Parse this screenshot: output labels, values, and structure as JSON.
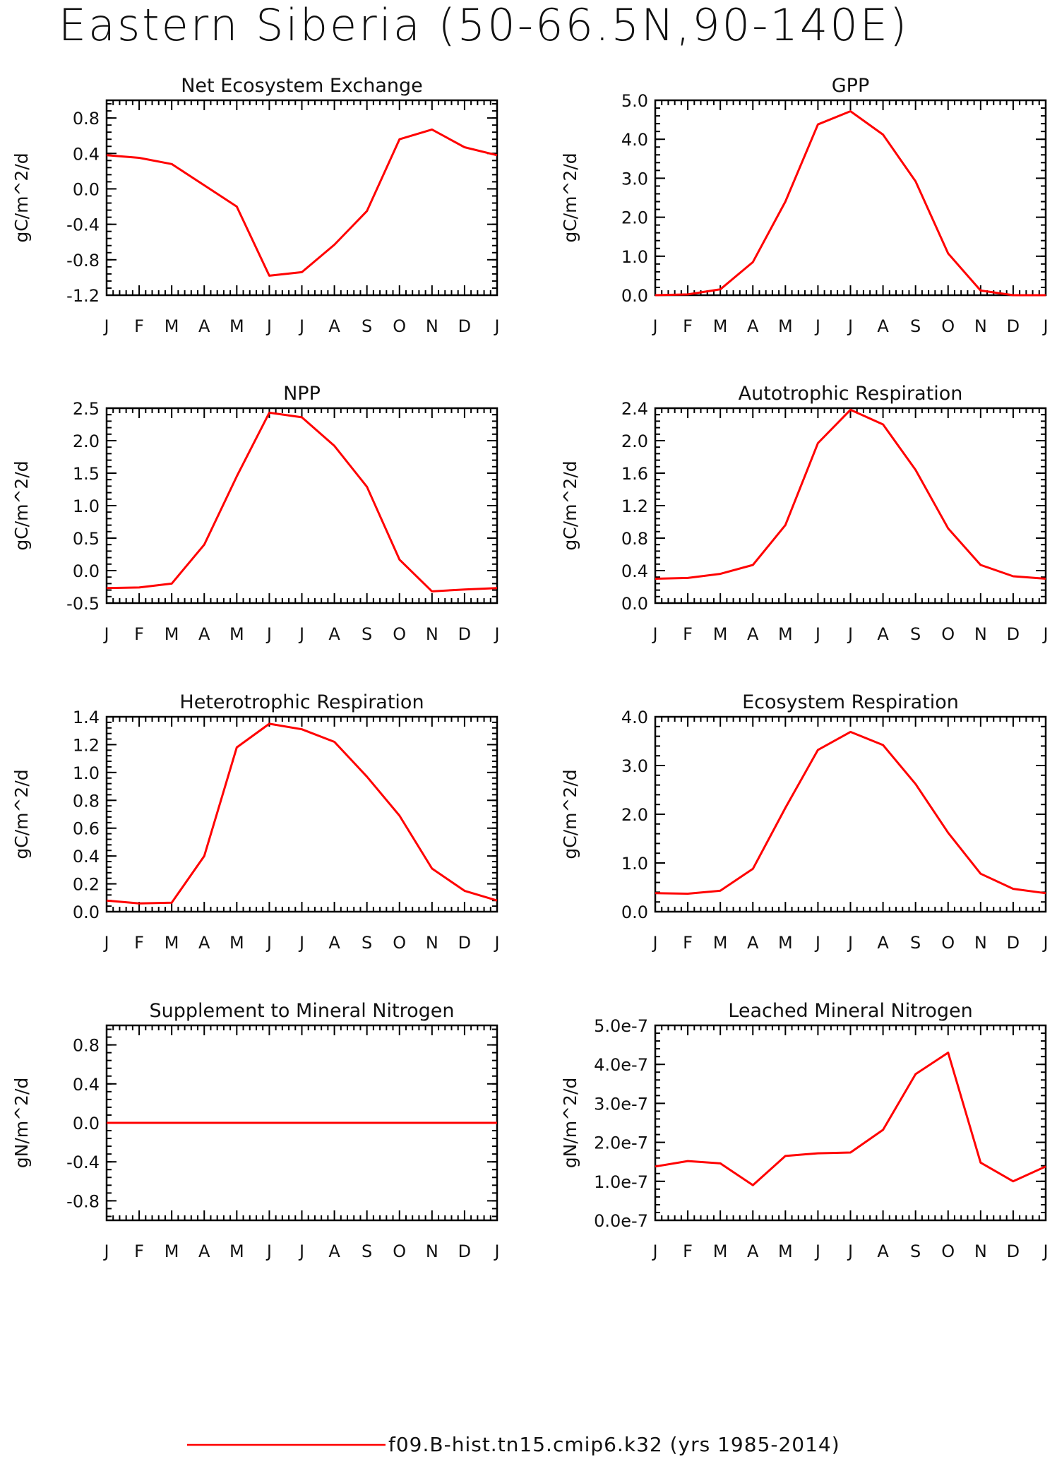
{
  "title": "Eastern Siberia (50-66.5N,90-140E)",
  "legend": {
    "label": "f09.B-hist.tn15.cmip6.k32 (yrs 1985-2014)",
    "color": "#ff0000"
  },
  "chart_data": [
    {
      "type": "line",
      "title": "Net Ecosystem Exchange",
      "ylabel": "gC/m^2/d",
      "categories": [
        "J",
        "F",
        "M",
        "A",
        "M",
        "J",
        "J",
        "A",
        "S",
        "O",
        "N",
        "D",
        "J"
      ],
      "ylim": [
        -1.2,
        1.0
      ],
      "yticks": [
        -1.2,
        -0.8,
        -0.4,
        0.0,
        0.4,
        0.8
      ],
      "ytick_labels": [
        "-1.2",
        "-0.8",
        "-0.4",
        "0.0",
        "0.4",
        "0.8"
      ],
      "series": [
        {
          "values": [
            0.38,
            0.35,
            0.28,
            0.04,
            -0.2,
            -0.98,
            -0.94,
            -0.63,
            -0.25,
            0.56,
            0.67,
            0.47,
            0.38
          ]
        }
      ]
    },
    {
      "type": "line",
      "title": "GPP",
      "ylabel": "gC/m^2/d",
      "categories": [
        "J",
        "F",
        "M",
        "A",
        "M",
        "J",
        "J",
        "A",
        "S",
        "O",
        "N",
        "D",
        "J"
      ],
      "ylim": [
        0.0,
        5.0
      ],
      "yticks": [
        0.0,
        1.0,
        2.0,
        3.0,
        4.0,
        5.0
      ],
      "ytick_labels": [
        "0.0",
        "1.0",
        "2.0",
        "3.0",
        "4.0",
        "5.0"
      ],
      "series": [
        {
          "values": [
            0.0,
            0.02,
            0.15,
            0.85,
            2.4,
            4.38,
            4.72,
            4.12,
            2.92,
            1.07,
            0.12,
            0.0,
            0.0
          ]
        }
      ]
    },
    {
      "type": "line",
      "title": "NPP",
      "ylabel": "gC/m^2/d",
      "categories": [
        "J",
        "F",
        "M",
        "A",
        "M",
        "J",
        "J",
        "A",
        "S",
        "O",
        "N",
        "D",
        "J"
      ],
      "ylim": [
        -0.5,
        2.5
      ],
      "yticks": [
        -0.5,
        0.0,
        0.5,
        1.0,
        1.5,
        2.0,
        2.5
      ],
      "ytick_labels": [
        "-0.5",
        "0.0",
        "0.5",
        "1.0",
        "1.5",
        "2.0",
        "2.5"
      ],
      "series": [
        {
          "values": [
            -0.27,
            -0.26,
            -0.2,
            0.4,
            1.45,
            2.43,
            2.36,
            1.92,
            1.29,
            0.17,
            -0.32,
            -0.29,
            -0.27
          ]
        }
      ]
    },
    {
      "type": "line",
      "title": "Autotrophic Respiration",
      "ylabel": "gC/m^2/d",
      "categories": [
        "J",
        "F",
        "M",
        "A",
        "M",
        "J",
        "J",
        "A",
        "S",
        "O",
        "N",
        "D",
        "J"
      ],
      "ylim": [
        0.0,
        2.4
      ],
      "yticks": [
        0.0,
        0.4,
        0.8,
        1.2,
        1.6,
        2.0,
        2.4
      ],
      "ytick_labels": [
        "0.0",
        "0.4",
        "0.8",
        "1.2",
        "1.6",
        "2.0",
        "2.4"
      ],
      "series": [
        {
          "values": [
            0.3,
            0.31,
            0.36,
            0.47,
            0.96,
            1.97,
            2.38,
            2.2,
            1.64,
            0.92,
            0.47,
            0.33,
            0.3
          ]
        }
      ]
    },
    {
      "type": "line",
      "title": "Heterotrophic Respiration",
      "ylabel": "gC/m^2/d",
      "categories": [
        "J",
        "F",
        "M",
        "A",
        "M",
        "J",
        "J",
        "A",
        "S",
        "O",
        "N",
        "D",
        "J"
      ],
      "ylim": [
        0.0,
        1.4
      ],
      "yticks": [
        0.0,
        0.2,
        0.4,
        0.6,
        0.8,
        1.0,
        1.2,
        1.4
      ],
      "ytick_labels": [
        "0.0",
        "0.2",
        "0.4",
        "0.6",
        "0.8",
        "1.0",
        "1.2",
        "1.4"
      ],
      "series": [
        {
          "values": [
            0.08,
            0.06,
            0.065,
            0.4,
            1.18,
            1.35,
            1.31,
            1.22,
            0.97,
            0.69,
            0.31,
            0.15,
            0.08
          ]
        }
      ]
    },
    {
      "type": "line",
      "title": "Ecosystem Respiration",
      "ylabel": "gC/m^2/d",
      "categories": [
        "J",
        "F",
        "M",
        "A",
        "M",
        "J",
        "J",
        "A",
        "S",
        "O",
        "N",
        "D",
        "J"
      ],
      "ylim": [
        0.0,
        4.0
      ],
      "yticks": [
        0.0,
        1.0,
        2.0,
        3.0,
        4.0
      ],
      "ytick_labels": [
        "0.0",
        "1.0",
        "2.0",
        "3.0",
        "4.0"
      ],
      "series": [
        {
          "values": [
            0.38,
            0.37,
            0.43,
            0.88,
            2.13,
            3.32,
            3.69,
            3.42,
            2.62,
            1.62,
            0.78,
            0.47,
            0.38
          ]
        }
      ]
    },
    {
      "type": "line",
      "title": "Supplement to Mineral Nitrogen",
      "ylabel": "gN/m^2/d",
      "categories": [
        "J",
        "F",
        "M",
        "A",
        "M",
        "J",
        "J",
        "A",
        "S",
        "O",
        "N",
        "D",
        "J"
      ],
      "ylim": [
        -1.0,
        1.0
      ],
      "yticks": [
        -0.8,
        -0.4,
        0.0,
        0.4,
        0.8
      ],
      "ytick_labels": [
        "-0.8",
        "-0.4",
        "0.0",
        "0.4",
        "0.8"
      ],
      "series": [
        {
          "values": [
            0,
            0,
            0,
            0,
            0,
            0,
            0,
            0,
            0,
            0,
            0,
            0,
            0
          ]
        }
      ]
    },
    {
      "type": "line",
      "title": "Leached Mineral Nitrogen",
      "ylabel": "gN/m^2/d",
      "categories": [
        "J",
        "F",
        "M",
        "A",
        "M",
        "J",
        "J",
        "A",
        "S",
        "O",
        "N",
        "D",
        "J"
      ],
      "ylim": [
        0.0,
        5e-07
      ],
      "yticks": [
        0.0,
        1e-07,
        2e-07,
        3e-07,
        4e-07,
        5e-07
      ],
      "ytick_labels": [
        "0.0e-7",
        "1.0e-7",
        "2.0e-7",
        "3.0e-7",
        "4.0e-7",
        "5.0e-7"
      ],
      "series": [
        {
          "values": [
            1.38e-07,
            1.52e-07,
            1.46e-07,
            9e-08,
            1.65e-07,
            1.72e-07,
            1.74e-07,
            2.32e-07,
            3.75e-07,
            4.3e-07,
            1.48e-07,
            1e-07,
            1.38e-07
          ]
        }
      ]
    }
  ]
}
